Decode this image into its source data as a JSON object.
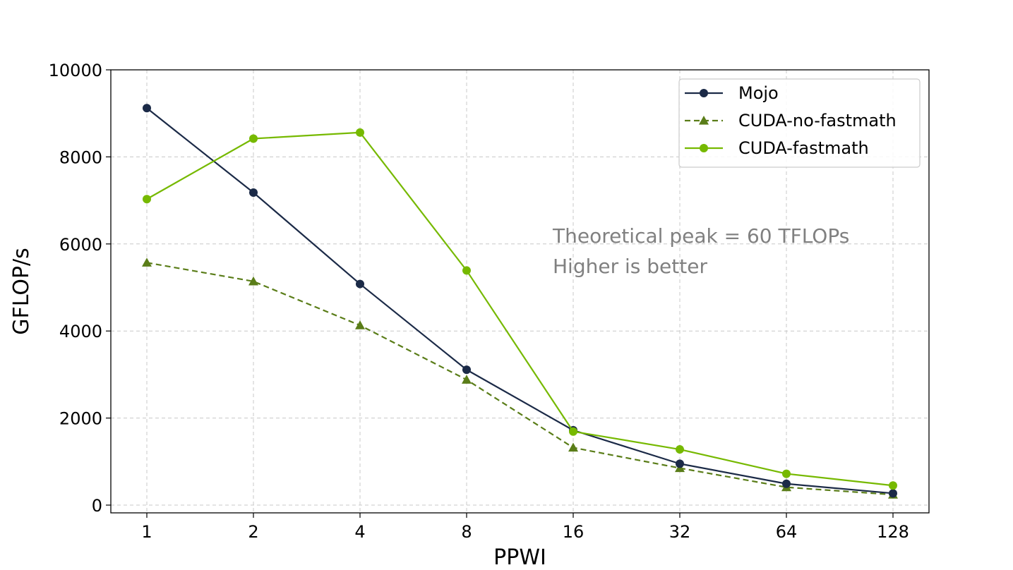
{
  "chart_data": {
    "type": "line",
    "title": "",
    "xlabel": "PPWI",
    "ylabel": "GFLOP/s",
    "categories": [
      "1",
      "2",
      "4",
      "8",
      "16",
      "32",
      "64",
      "128"
    ],
    "ylim": [
      -200,
      10000
    ],
    "yticks": [
      0,
      2000,
      4000,
      6000,
      8000,
      10000
    ],
    "grid": true,
    "legend_position": "top-right",
    "series": [
      {
        "name": "Mojo",
        "color": "#1b2a47",
        "marker": "circle",
        "linestyle": "solid",
        "values": [
          9120,
          7180,
          5080,
          3110,
          1720,
          950,
          490,
          270
        ]
      },
      {
        "name": "CUDA-no-fastmath",
        "color": "#5a7d18",
        "marker": "triangle",
        "linestyle": "dashed",
        "values": [
          5570,
          5140,
          4130,
          2880,
          1320,
          850,
          410,
          240
        ]
      },
      {
        "name": "CUDA-fastmath",
        "color": "#76b900",
        "marker": "circle",
        "linestyle": "solid",
        "values": [
          7030,
          8420,
          8560,
          5390,
          1690,
          1280,
          720,
          450
        ]
      }
    ],
    "annotations": [
      {
        "text": "Theoretical peak = 60 TFLOPs",
        "color": "#808080"
      },
      {
        "text": "Higher is better",
        "color": "#808080"
      }
    ]
  }
}
